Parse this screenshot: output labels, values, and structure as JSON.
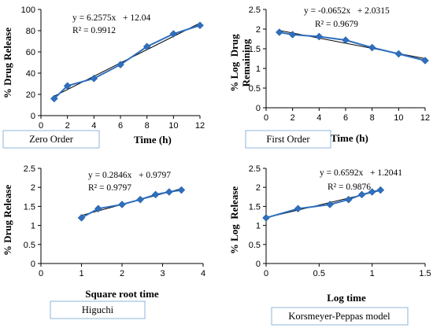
{
  "chart_data": [
    {
      "type": "scatter",
      "title": "Zero Order",
      "xlabel": "Time (h)",
      "ylabel": "% Drug Release",
      "xlim": [
        0,
        12
      ],
      "ylim": [
        0,
        100
      ],
      "xticks": [
        0,
        2,
        4,
        6,
        8,
        10,
        12
      ],
      "yticks": [
        0,
        20,
        40,
        60,
        80,
        100
      ],
      "equation": "y = 6.2575x   + 12.04",
      "r2": "R² = 0.9912",
      "trendline": {
        "slope": 6.2575,
        "intercept": 12.04
      },
      "series": [
        {
          "x": [
            1,
            2,
            4,
            6,
            8,
            10,
            12
          ],
          "values": [
            16,
            28,
            35,
            48,
            65,
            77,
            85
          ]
        }
      ]
    },
    {
      "type": "scatter",
      "title": "First Order",
      "xlabel": "Time (h)",
      "ylabel": "% Log  Drug Remaining",
      "xlim": [
        0,
        12
      ],
      "ylim": [
        0,
        2.5
      ],
      "xticks": [
        0,
        2,
        4,
        6,
        8,
        10,
        12
      ],
      "yticks": [
        0,
        0.5,
        1,
        1.5,
        2,
        2.5
      ],
      "equation": "y = -0.0652x   + 2.0315",
      "r2": "R² = 0.9679",
      "trendline": {
        "slope": -0.0652,
        "intercept": 2.0315
      },
      "series": [
        {
          "x": [
            1,
            2,
            4,
            6,
            8,
            10,
            12
          ],
          "values": [
            1.92,
            1.86,
            1.81,
            1.72,
            1.53,
            1.37,
            1.2
          ]
        }
      ]
    },
    {
      "type": "scatter",
      "title": "Higuchi",
      "xlabel": "Square root time",
      "ylabel": "% Drug Release",
      "xlim": [
        0,
        4
      ],
      "ylim": [
        0,
        2.5
      ],
      "xticks": [
        0,
        1,
        2,
        3,
        4
      ],
      "yticks": [
        0,
        0.5,
        1,
        1.5,
        2,
        2.5
      ],
      "equation": "y = 0.2846x   + 0.9797",
      "r2": "R² = 0.9797",
      "trendline": {
        "slope": 0.2846,
        "intercept": 0.9797
      },
      "series": [
        {
          "x": [
            1,
            1.414,
            2,
            2.449,
            2.828,
            3.162,
            3.464
          ],
          "values": [
            1.2,
            1.44,
            1.55,
            1.68,
            1.81,
            1.88,
            1.93
          ]
        }
      ]
    },
    {
      "type": "scatter",
      "title": "Korsmeyer-Peppas model",
      "xlabel": "Log time",
      "ylabel": "% Log  Release",
      "xlim": [
        0,
        1.5
      ],
      "ylim": [
        0,
        2.5
      ],
      "xticks": [
        0,
        0.5,
        1,
        1.5
      ],
      "yticks": [
        0,
        0.5,
        1,
        1.5,
        2,
        2.5
      ],
      "equation": "y = 0.6592x   + 1.2041",
      "r2": "R² = 0.9876",
      "trendline": {
        "slope": 0.6592,
        "intercept": 1.2041
      },
      "series": [
        {
          "x": [
            0,
            0.301,
            0.602,
            0.778,
            0.903,
            1.0,
            1.079
          ],
          "values": [
            1.2,
            1.44,
            1.55,
            1.68,
            1.81,
            1.88,
            1.93
          ]
        }
      ]
    }
  ],
  "colors": {
    "series": "#2e6fbe",
    "marker": "#2e6fbe",
    "trendline": "#000000",
    "label_box_border": "#8fb4d9"
  }
}
